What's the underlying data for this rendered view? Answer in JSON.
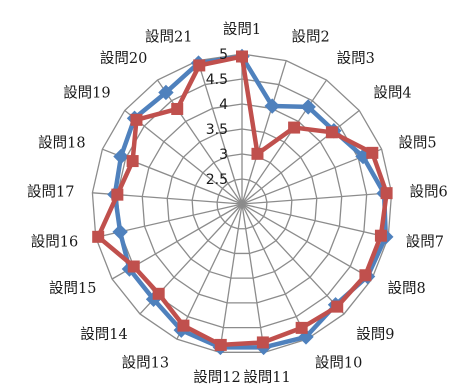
{
  "chart_data": {
    "type": "radar",
    "categories": [
      "設問1",
      "設問2",
      "設問3",
      "設問4",
      "設問5",
      "設問6",
      "設問7",
      "設問8",
      "設問9",
      "設問10",
      "設問11",
      "設問12",
      "設問13",
      "設問14",
      "設問15",
      "設問16",
      "設問17",
      "設問18",
      "設問19",
      "設問20",
      "設問21"
    ],
    "r_range": [
      2,
      5
    ],
    "ticks": [
      "2.5",
      "3",
      "3.5",
      "4",
      "4.5",
      "5"
    ],
    "grid": true,
    "series": [
      {
        "color": "#4f81bd",
        "marker": "diamond",
        "values": [
          4.95,
          4.05,
          4.35,
          4.35,
          4.6,
          4.85,
          4.95,
          4.9,
          4.75,
          4.95,
          4.9,
          4.9,
          4.8,
          4.6,
          4.6,
          4.5,
          4.55,
          4.6,
          4.75,
          4.7,
          4.95
        ]
      },
      {
        "color": "#c0504d",
        "marker": "square",
        "values": [
          4.95,
          3.05,
          3.85,
          4.3,
          4.8,
          4.9,
          4.85,
          4.85,
          4.8,
          4.75,
          4.8,
          4.85,
          4.7,
          4.45,
          4.5,
          4.95,
          4.5,
          4.35,
          4.7,
          4.3,
          4.9
        ]
      }
    ]
  }
}
